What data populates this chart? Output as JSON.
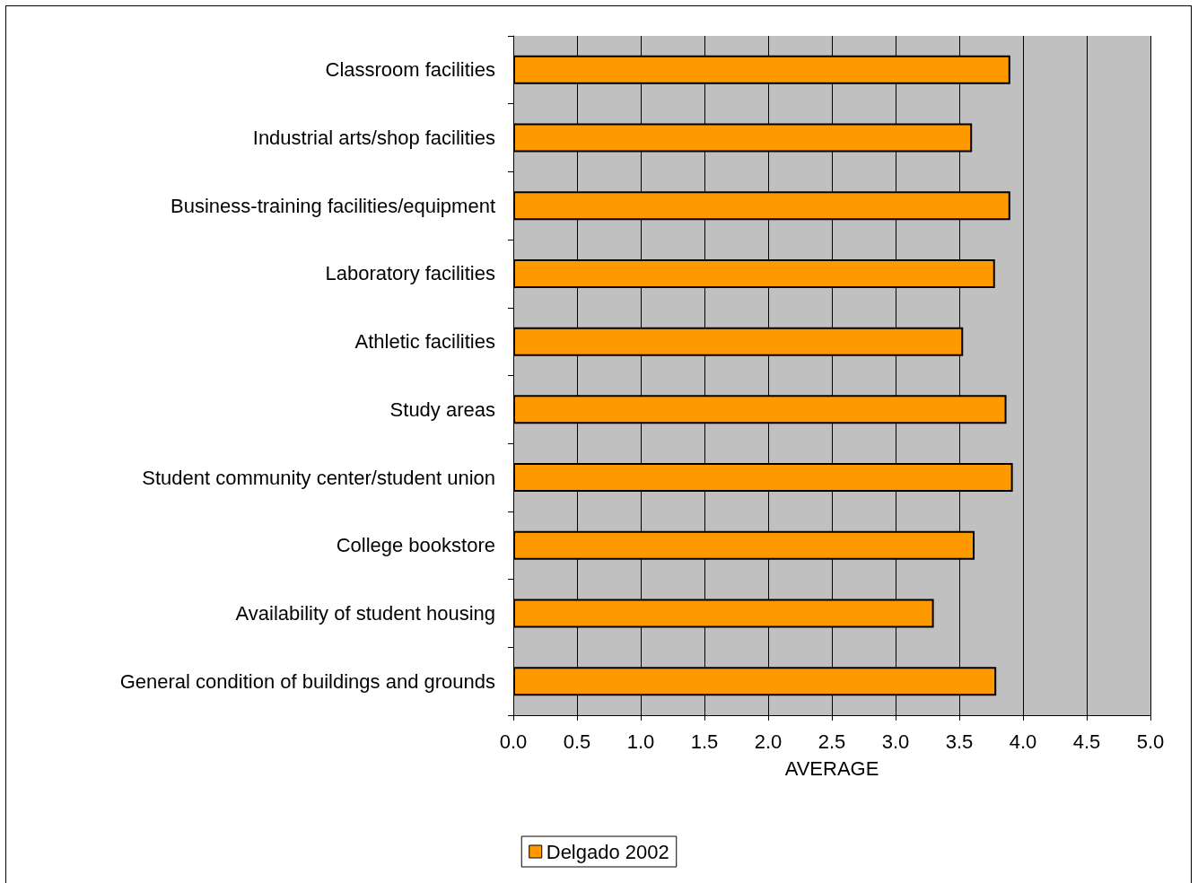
{
  "chart_data": {
    "type": "bar",
    "orientation": "horizontal",
    "xlabel": "AVERAGE",
    "categories": [
      "Classroom facilities",
      "Industrial arts/shop facilities",
      "Business-training facilities/equipment",
      "Laboratory facilities",
      "Athletic facilities",
      "Study areas",
      "Student community center/student union",
      "College bookstore",
      "Availability of student housing",
      "General condition of buildings and grounds"
    ],
    "series": [
      {
        "name": "Delgado 2002",
        "color": "#ff9900",
        "values": [
          3.9,
          3.6,
          3.9,
          3.78,
          3.53,
          3.87,
          3.92,
          3.62,
          3.3,
          3.79
        ]
      }
    ],
    "xlim": [
      0,
      5
    ],
    "xticks": [
      {
        "value": 0,
        "label": "0.0"
      },
      {
        "value": 0.5,
        "label": "0.5"
      },
      {
        "value": 1,
        "label": "1.0"
      },
      {
        "value": 1.5,
        "label": "1.5"
      },
      {
        "value": 2,
        "label": "2.0"
      },
      {
        "value": 2.5,
        "label": "2.5"
      },
      {
        "value": 3,
        "label": "3.0"
      },
      {
        "value": 3.5,
        "label": "3.5"
      },
      {
        "value": 4,
        "label": "4.0"
      },
      {
        "value": 4.5,
        "label": "4.5"
      },
      {
        "value": 5,
        "label": "5.0"
      }
    ],
    "grid": "x",
    "legend": "bottom"
  }
}
